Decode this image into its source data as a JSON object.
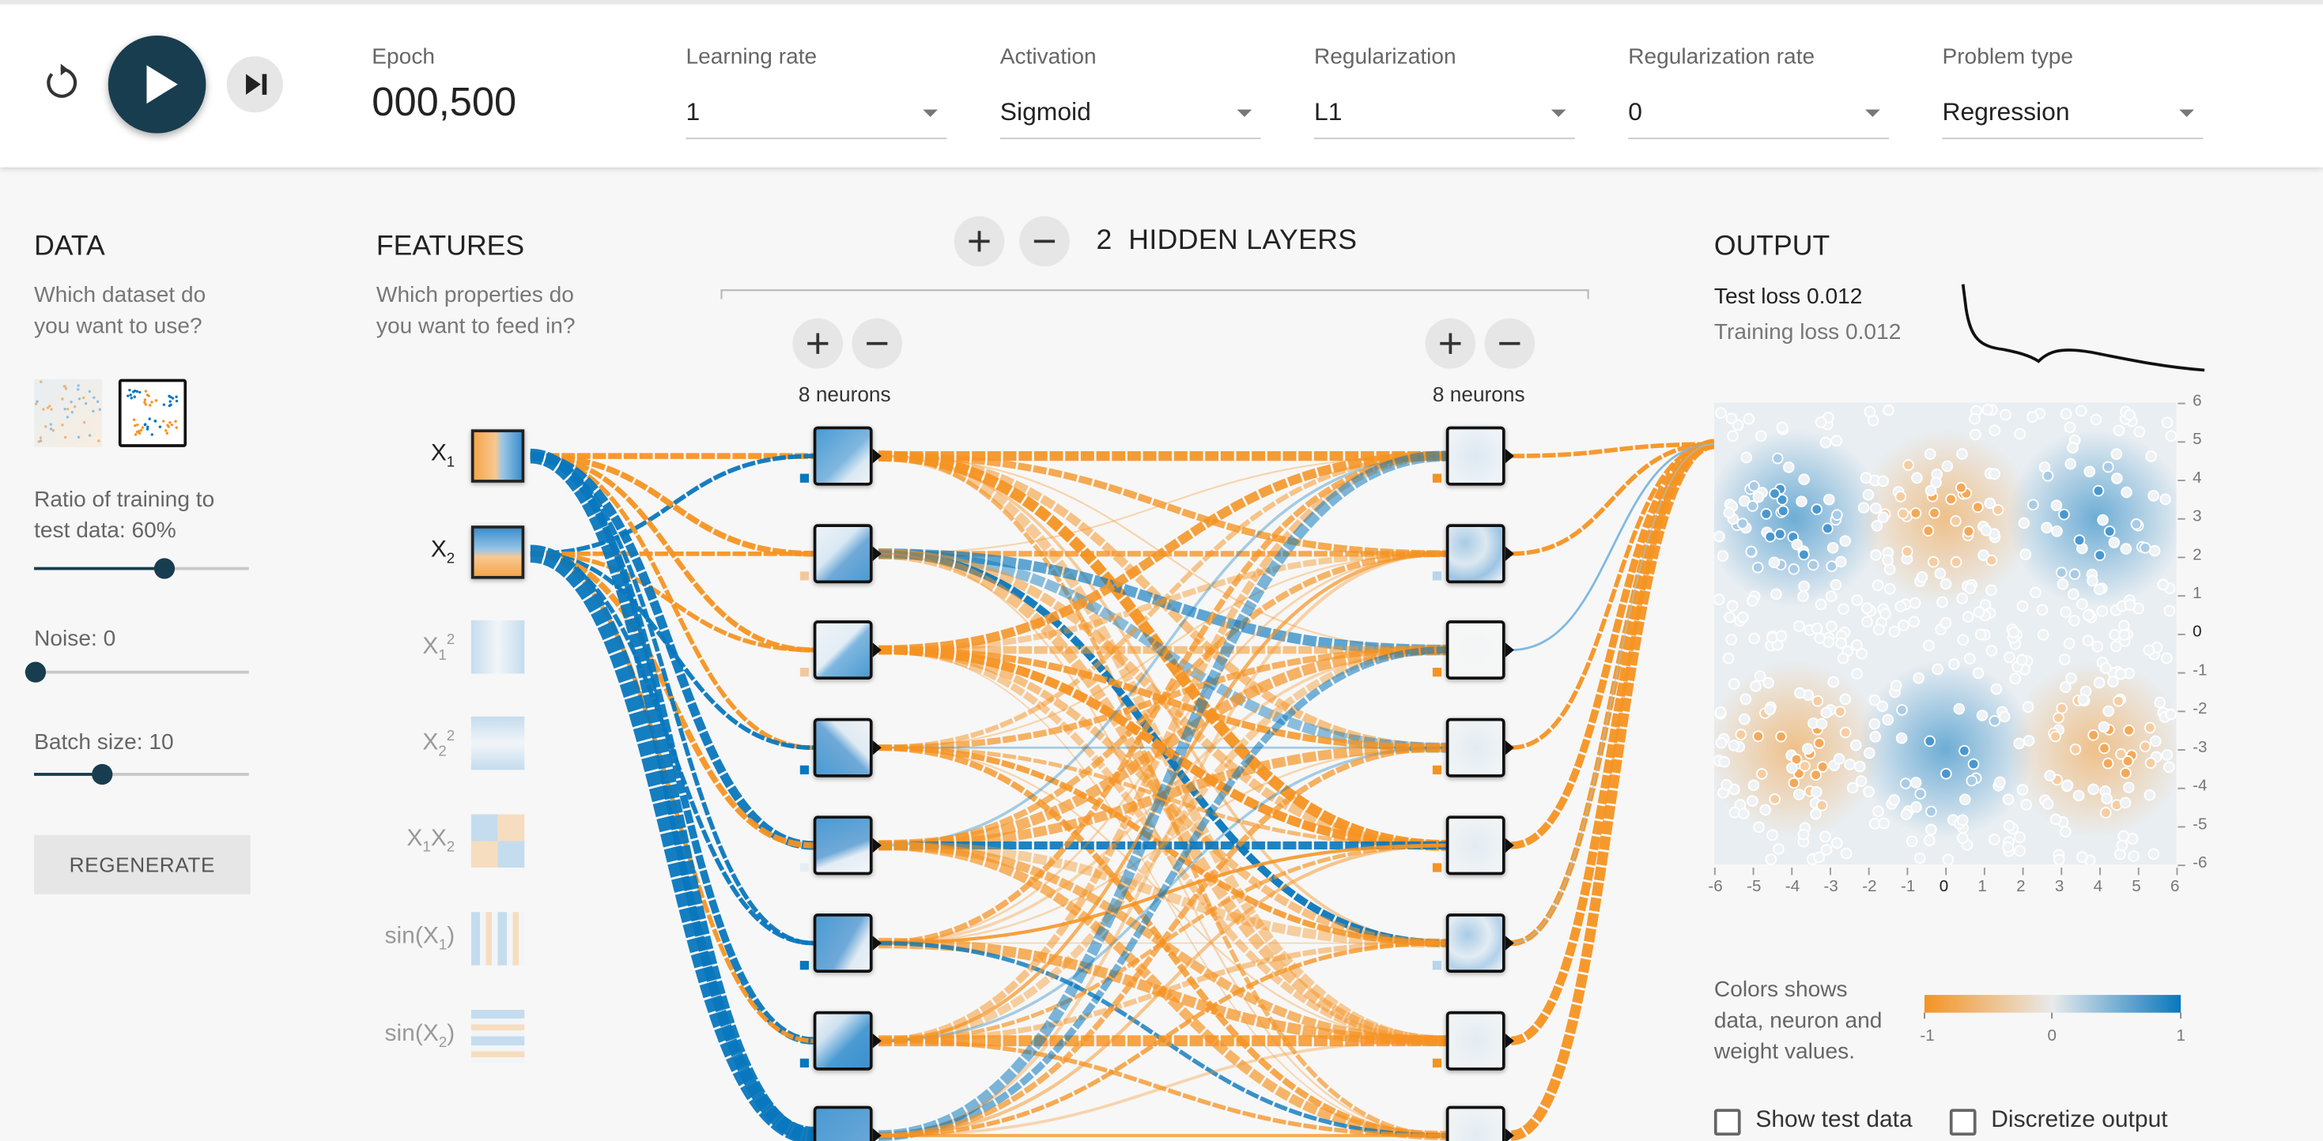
{
  "controls": {
    "epoch_label": "Epoch",
    "epoch_value": "000,500",
    "selects": [
      {
        "label": "Learning rate",
        "value": "1"
      },
      {
        "label": "Activation",
        "value": "Sigmoid"
      },
      {
        "label": "Regularization",
        "value": "L1"
      },
      {
        "label": "Regularization rate",
        "value": "0"
      },
      {
        "label": "Problem type",
        "value": "Regression"
      }
    ]
  },
  "data": {
    "title": "DATA",
    "question_line1": "Which dataset do",
    "question_line2": "you want to use?",
    "ratio_line1": "Ratio of training to",
    "ratio_line2": "test data:  60%",
    "ratio_value": 0.6,
    "noise_label": "Noise:  0",
    "noise_value": 0,
    "batch_label": "Batch size:  10",
    "batch_value": 0.3,
    "regenerate_label": "REGENERATE"
  },
  "features": {
    "title": "FEATURES",
    "question_line1": "Which properties do",
    "question_line2": "you want to feed in?",
    "items": [
      {
        "base": "X",
        "sub": "1",
        "sup": "",
        "tail": "",
        "active": true
      },
      {
        "base": "X",
        "sub": "2",
        "sup": "",
        "tail": "",
        "active": true
      },
      {
        "base": "X",
        "sub": "1",
        "sup": "2",
        "tail": "",
        "active": false
      },
      {
        "base": "X",
        "sub": "2",
        "sup": "2",
        "tail": "",
        "active": false
      },
      {
        "base": "X",
        "sub": "1",
        "sup": "",
        "tail": "X",
        "sub2": "2",
        "active": false
      },
      {
        "base": "sin(X",
        "sub": "1",
        "sup": "",
        "tail": ")",
        "active": false
      },
      {
        "base": "sin(X",
        "sub": "2",
        "sup": "",
        "tail": ")",
        "active": false
      }
    ]
  },
  "network": {
    "hidden_layers_count": "2",
    "hidden_layers_label": "HIDDEN LAYERS",
    "layers": [
      {
        "neurons_label": "8 neurons"
      },
      {
        "neurons_label": "8 neurons"
      }
    ]
  },
  "output": {
    "title": "OUTPUT",
    "test_loss": "Test loss 0.012",
    "training_loss": "Training loss 0.012",
    "y_ticks": [
      "6",
      "5",
      "4",
      "3",
      "2",
      "1",
      "0",
      "-1",
      "-2",
      "-3",
      "-4",
      "-5",
      "-6"
    ],
    "x_ticks": [
      "-6",
      "-5",
      "-4",
      "-3",
      "-2",
      "-1",
      "0",
      "1",
      "2",
      "3",
      "4",
      "5",
      "6"
    ],
    "legend_line1": "Colors shows",
    "legend_line2": "data, neuron and",
    "legend_line3": "weight values.",
    "legend_ticks": [
      "-1",
      "0",
      "1"
    ],
    "show_test_data": "Show test data",
    "discretize_output": "Discretize output"
  },
  "colors": {
    "orange": "#f59322",
    "blue": "#0877bd",
    "dark": "#183d4e"
  }
}
